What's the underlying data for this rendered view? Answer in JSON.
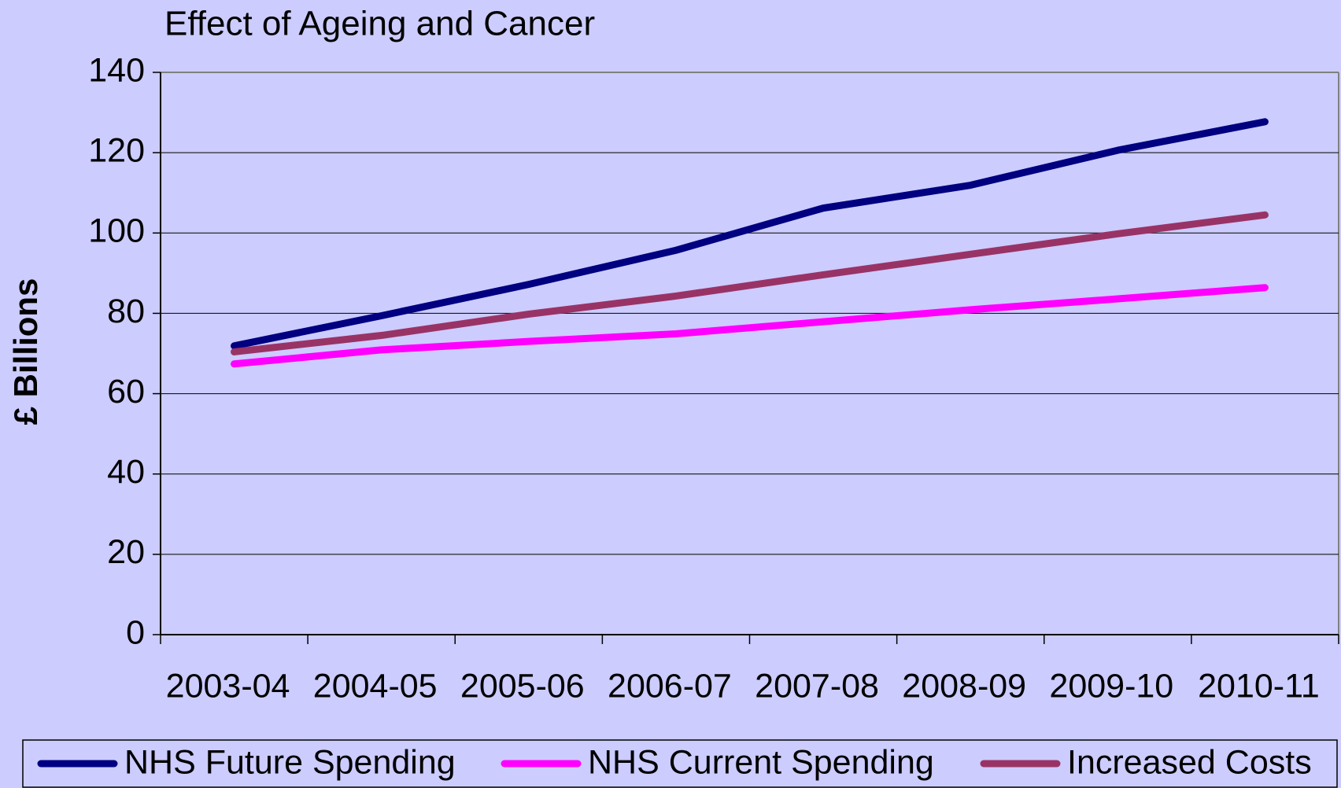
{
  "chart_data": {
    "type": "line",
    "title": "Effect of Ageing and Cancer",
    "y_label": "£ Billions",
    "categories": [
      "2003-04",
      "2004-05",
      "2005-06",
      "2006-07",
      "2007-08",
      "2008-09",
      "2009-10",
      "2010-11"
    ],
    "series": [
      {
        "name": "NHS Future Spending",
        "color": "#000080",
        "values": [
          71.9,
          79.4,
          87.2,
          95.7,
          106.2,
          111.9,
          120.6,
          127.7
        ]
      },
      {
        "name": "NHS Current Spending",
        "color": "#ff00ff",
        "values": [
          67.4,
          70.9,
          73,
          74.9,
          77.9,
          80.9,
          83.6,
          86.4
        ]
      },
      {
        "name": "Increased Costs",
        "color": "#993366",
        "values": [
          70.4,
          74.5,
          79.8,
          84.3,
          89.6,
          94.7,
          99.8,
          104.5
        ]
      }
    ],
    "ylim": [
      0,
      140
    ],
    "yticks": [
      0,
      20,
      40,
      60,
      80,
      100,
      120,
      140
    ],
    "grid": true,
    "legend": "bottom"
  }
}
